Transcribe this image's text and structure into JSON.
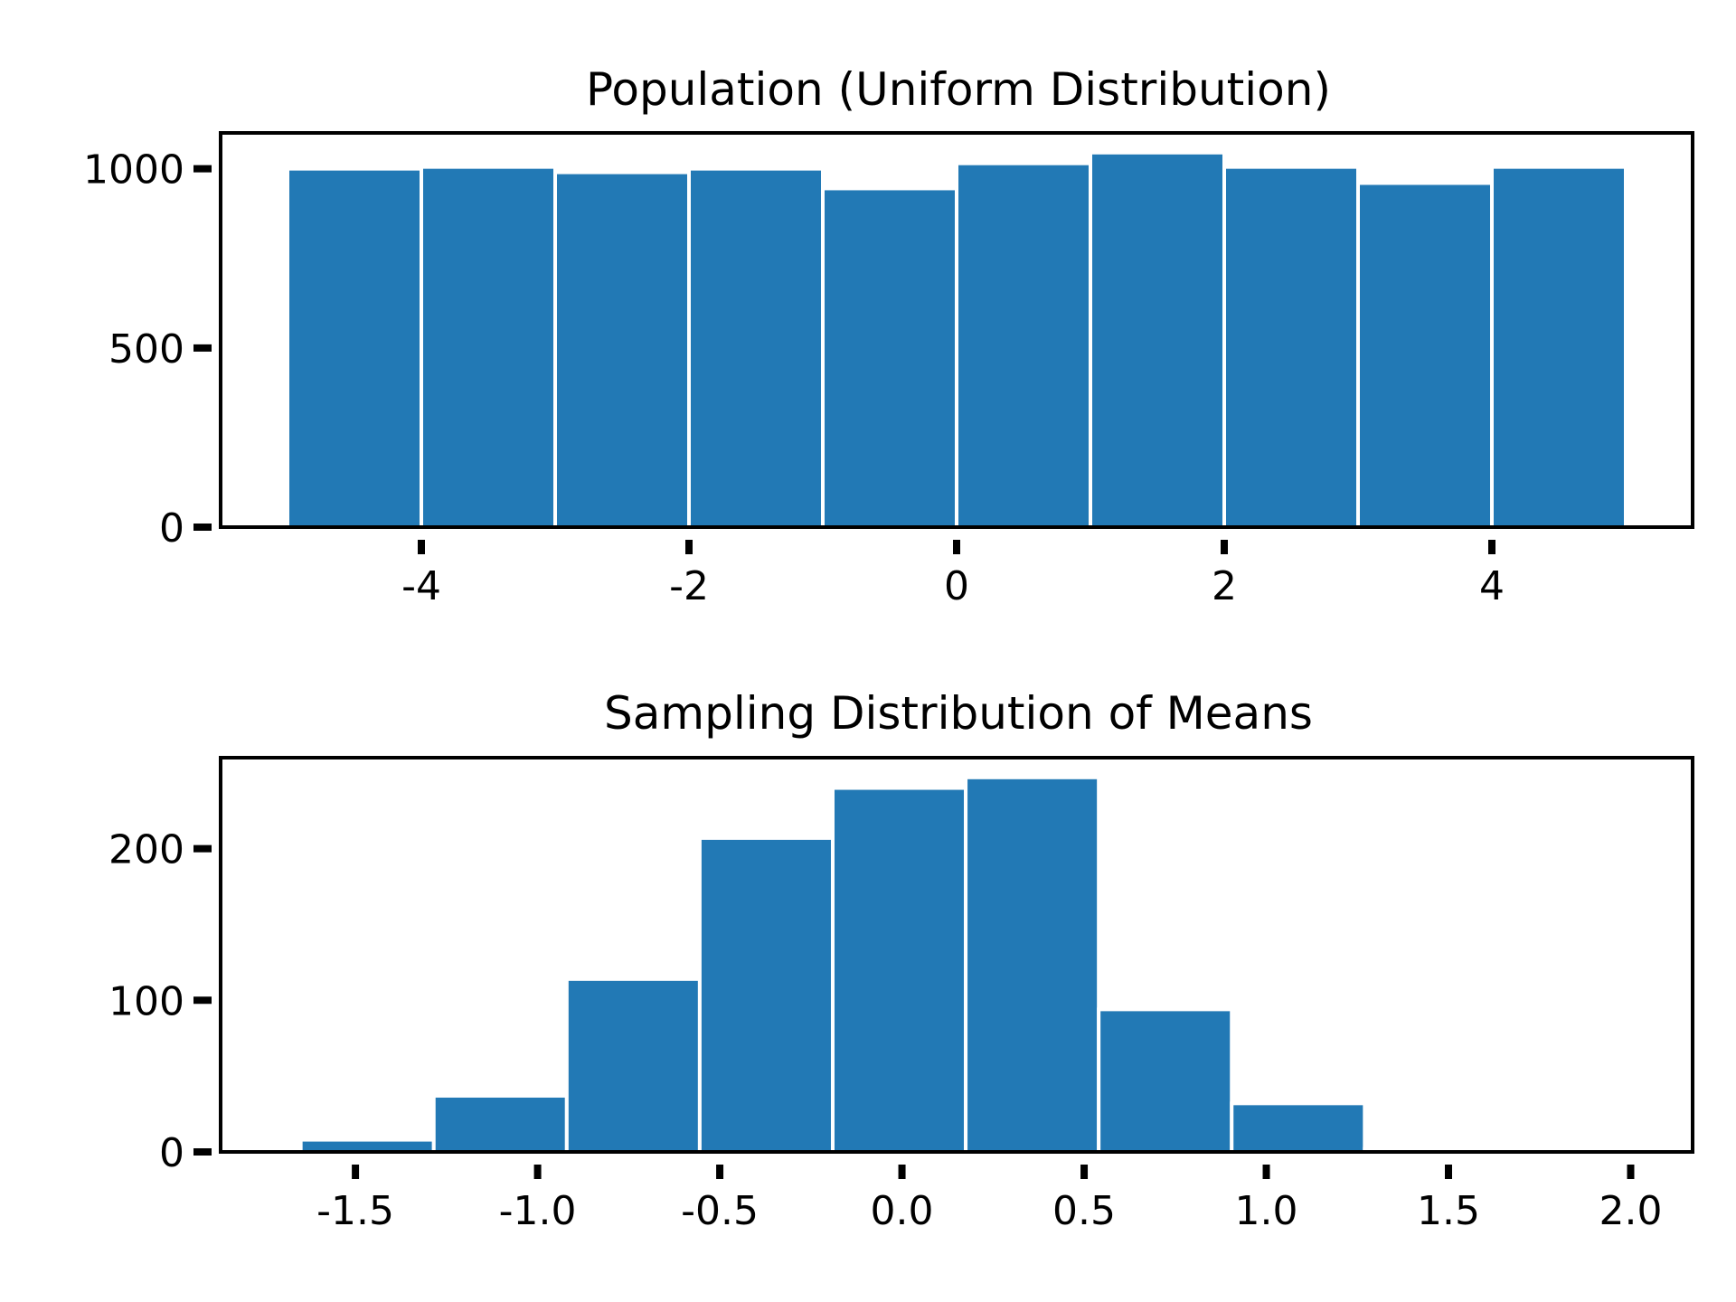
{
  "colors": {
    "bar": "#2279b5",
    "edge": "#ffffff",
    "axis": "#000000",
    "background": "#ffffff"
  },
  "chart_data": [
    {
      "type": "bar",
      "title": "Population (Uniform Distribution)",
      "xlabel": "",
      "ylabel": "",
      "grid": false,
      "bin_edges": [
        -5,
        -4,
        -3,
        -2,
        -1,
        0,
        1,
        2,
        3,
        4,
        5
      ],
      "values": [
        1000,
        1005,
        990,
        1000,
        945,
        1015,
        1045,
        1005,
        960,
        1005
      ],
      "xlim": [
        -5.5,
        5.5
      ],
      "ylim": [
        0,
        1100
      ],
      "xticks": [
        -4,
        -2,
        0,
        2,
        4
      ],
      "xtick_labels": [
        "-4",
        "-2",
        "0",
        "2",
        "4"
      ],
      "yticks": [
        0,
        500,
        1000
      ],
      "ytick_labels": [
        "0",
        "500",
        "1000"
      ]
    },
    {
      "type": "bar",
      "title": "Sampling Distribution of Means",
      "xlabel": "",
      "ylabel": "",
      "grid": false,
      "bin_edges": [
        -1.65,
        -1.285,
        -0.92,
        -0.555,
        -0.19,
        0.175,
        0.54,
        0.905,
        1.27,
        1.635
      ],
      "values": [
        8,
        37,
        114,
        207,
        240,
        247,
        94,
        32,
        2
      ],
      "xlim": [
        -1.87,
        2.17
      ],
      "ylim": [
        0,
        260
      ],
      "xticks": [
        -1.5,
        -1.0,
        -0.5,
        0.0,
        0.5,
        1.0,
        1.5,
        2.0
      ],
      "xtick_labels": [
        "-1.5",
        "-1.0",
        "-0.5",
        "0.0",
        "0.5",
        "1.0",
        "1.5",
        "2.0"
      ],
      "yticks": [
        0,
        100,
        200
      ],
      "ytick_labels": [
        "0",
        "100",
        "200"
      ]
    }
  ]
}
